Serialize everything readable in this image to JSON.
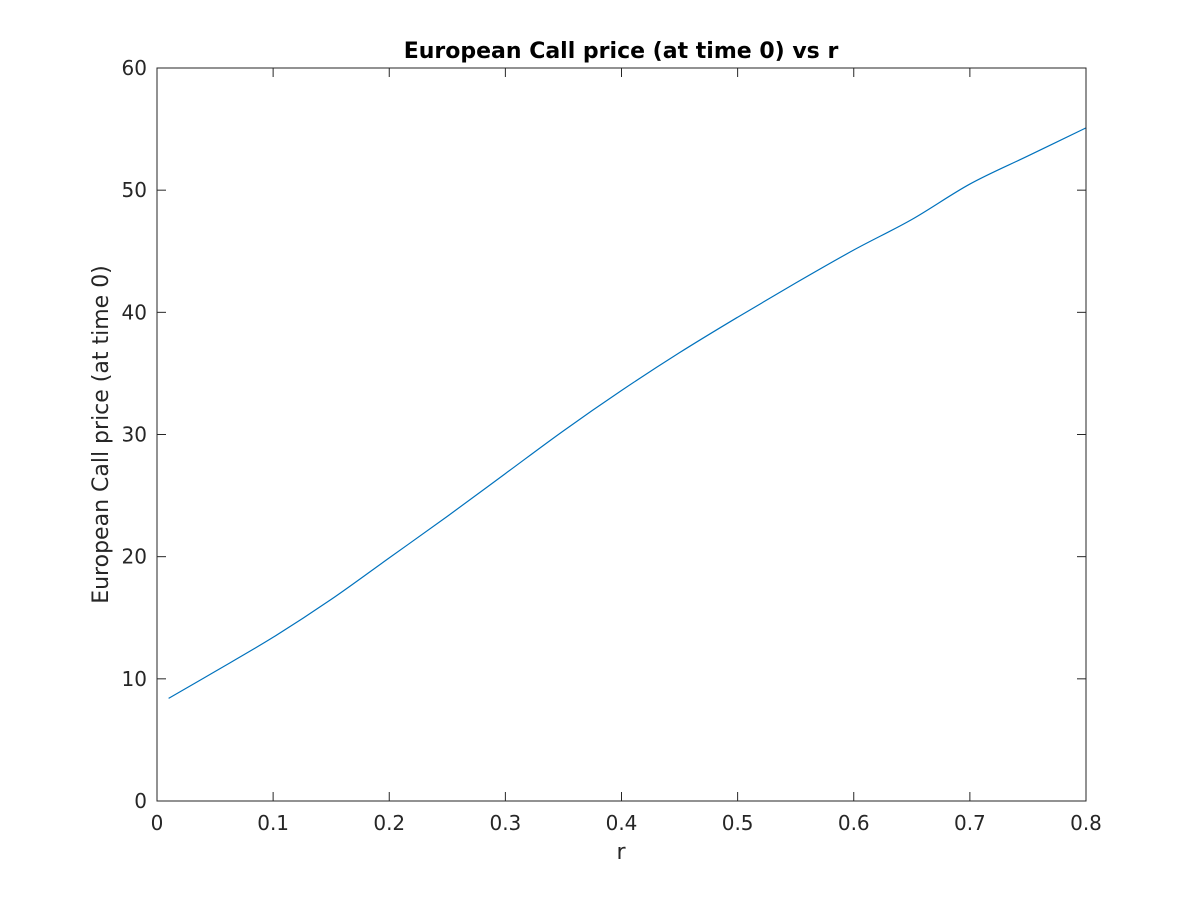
{
  "chart_data": {
    "type": "line",
    "title": "European Call price (at time 0) vs r",
    "xlabel": "r",
    "ylabel": "European Call price (at time 0)",
    "xlim": [
      0,
      0.8
    ],
    "ylim": [
      0,
      60
    ],
    "x_ticks": [
      0,
      0.1,
      0.2,
      0.3,
      0.4,
      0.5,
      0.6,
      0.7,
      0.8
    ],
    "x_tick_labels": [
      "0",
      "0.1",
      "0.2",
      "0.3",
      "0.4",
      "0.5",
      "0.6",
      "0.7",
      "0.8"
    ],
    "y_ticks": [
      0,
      10,
      20,
      30,
      40,
      50,
      60
    ],
    "y_tick_labels": [
      "0",
      "10",
      "20",
      "30",
      "40",
      "50",
      "60"
    ],
    "grid": false,
    "box": true,
    "series": [
      {
        "color": "#0072BD",
        "x": [
          0.01,
          0.05,
          0.1,
          0.15,
          0.2,
          0.25,
          0.3,
          0.35,
          0.4,
          0.45,
          0.5,
          0.55,
          0.6,
          0.65,
          0.7,
          0.75,
          0.8
        ],
        "y": [
          8.4,
          10.6,
          13.4,
          16.5,
          19.9,
          23.3,
          26.8,
          30.3,
          33.6,
          36.7,
          39.6,
          42.4,
          45.1,
          47.6,
          50.5,
          52.8,
          55.1
        ]
      }
    ]
  }
}
